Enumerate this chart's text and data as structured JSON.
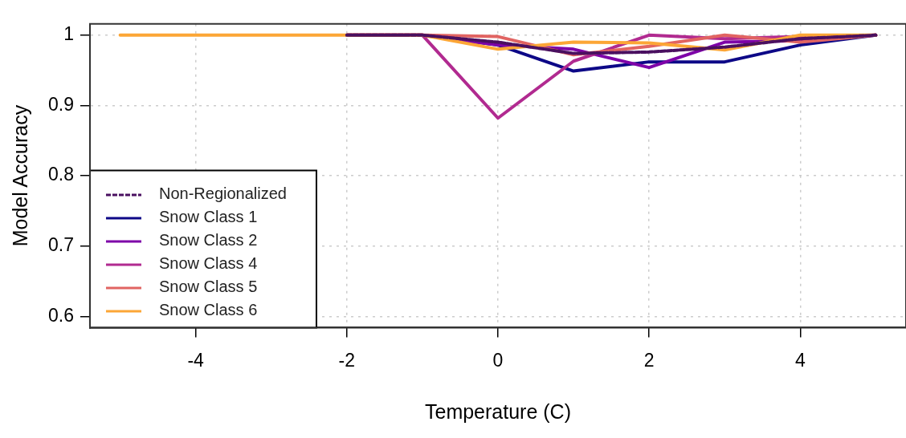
{
  "chart_data": {
    "type": "line",
    "xlabel": "Temperature (C)",
    "ylabel": "Model Accuracy",
    "x": [
      -5,
      -4,
      -3,
      -2,
      -1,
      0,
      1,
      2,
      3,
      4,
      5
    ],
    "series": [
      {
        "name": "Non-Regionalized",
        "color": "#4a1060",
        "line_style": "dashed",
        "values": [
          null,
          null,
          null,
          1.0,
          1.0,
          0.99,
          0.974,
          0.976,
          0.983,
          0.995,
          1.0
        ]
      },
      {
        "name": "Snow Class 1",
        "color": "#0d0887",
        "values": [
          null,
          null,
          null,
          1.0,
          1.0,
          0.986,
          0.949,
          0.962,
          0.962,
          0.986,
          1.0
        ]
      },
      {
        "name": "Snow Class 2",
        "color": "#7e03a8",
        "values": [
          null,
          null,
          null,
          1.0,
          1.0,
          0.986,
          0.98,
          0.954,
          0.99,
          0.992,
          1.0
        ]
      },
      {
        "name": "Snow Class 4",
        "color": "#b12a90",
        "values": [
          null,
          null,
          null,
          1.0,
          1.0,
          0.882,
          0.963,
          1.0,
          0.995,
          0.998,
          1.0
        ]
      },
      {
        "name": "Snow Class 5",
        "color": "#e16462",
        "values": [
          null,
          null,
          null,
          1.0,
          1.0,
          0.998,
          0.972,
          0.984,
          1.0,
          0.99,
          1.0
        ]
      },
      {
        "name": "Snow Class 6",
        "color": "#fca636",
        "values": [
          1.0,
          1.0,
          1.0,
          1.0,
          1.0,
          0.98,
          0.99,
          0.989,
          0.979,
          1.0,
          1.0
        ]
      }
    ],
    "xlim": [
      -5.4,
      5.4
    ],
    "xticks": [
      -4,
      -2,
      0,
      2,
      4
    ],
    "ylim": [
      0.584,
      1.016
    ],
    "yticks": [
      0.6,
      0.7,
      0.8,
      0.9,
      1.0
    ],
    "grid": true,
    "legend": "bottom left",
    "line_style": "solid",
    "marker": "none"
  }
}
